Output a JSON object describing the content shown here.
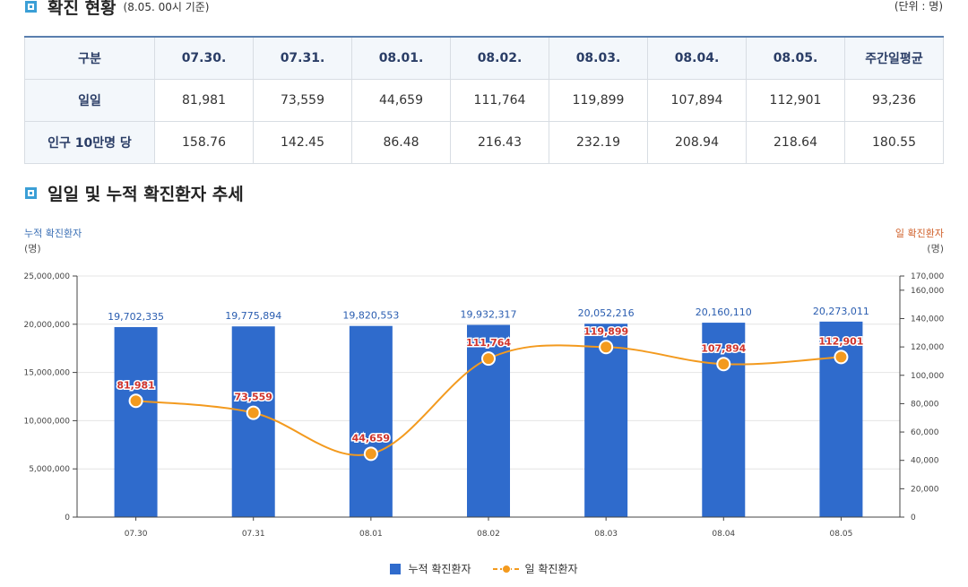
{
  "section1": {
    "title": "확진 현황",
    "subtitle": "(8.05. 00시 기준)",
    "unit": "(단위 : 명)"
  },
  "table": {
    "headers": [
      "구분",
      "07.30.",
      "07.31.",
      "08.01.",
      "08.02.",
      "08.03.",
      "08.04.",
      "08.05.",
      "주간일평균"
    ],
    "rows": [
      {
        "label": "일일",
        "cells": [
          "81,981",
          "73,559",
          "44,659",
          "111,764",
          "119,899",
          "107,894",
          "112,901",
          "93,236"
        ]
      },
      {
        "label": "인구 10만명 당",
        "cells": [
          "158.76",
          "142.45",
          "86.48",
          "216.43",
          "232.19",
          "208.94",
          "218.64",
          "180.55"
        ]
      }
    ]
  },
  "section2": {
    "title": "일일 및 누적 확진환자 추세"
  },
  "chart_data": {
    "type": "bar",
    "left_axis_label": "누적 확진환자",
    "left_axis_unit": "(명)",
    "right_axis_label": "일 확진환자",
    "right_axis_unit": "(명)",
    "categories": [
      "07.30",
      "07.31",
      "08.01",
      "08.02",
      "08.03",
      "08.04",
      "08.05"
    ],
    "left_ticks": [
      "0",
      "5,000,000",
      "10,000,000",
      "15,000,000",
      "20,000,000",
      "25,000,000"
    ],
    "left_tick_values": [
      0,
      5000000,
      10000000,
      15000000,
      20000000,
      25000000
    ],
    "left_ylim": [
      0,
      25000000
    ],
    "right_ticks": [
      "0",
      "20,000",
      "40,000",
      "60,000",
      "80,000",
      "100,000",
      "120,000",
      "140,000",
      "160,000",
      "170,000"
    ],
    "right_tick_values": [
      0,
      20000,
      40000,
      60000,
      80000,
      100000,
      120000,
      140000,
      160000,
      170000
    ],
    "right_ylim": [
      0,
      170000
    ],
    "series": [
      {
        "name": "누적 확진환자",
        "type": "bar",
        "axis": "left",
        "color": "#2f6bcc",
        "values": [
          19702335,
          19775894,
          19820553,
          19932317,
          20052216,
          20160110,
          20273011
        ],
        "labels": [
          "19,702,335",
          "19,775,894",
          "19,820,553",
          "19,932,317",
          "20,052,216",
          "20,160,110",
          "20,273,011"
        ]
      },
      {
        "name": "일 확진환자",
        "type": "line",
        "axis": "right",
        "color": "#f39a1e",
        "values": [
          81981,
          73559,
          44659,
          111764,
          119899,
          107894,
          112901
        ],
        "labels": [
          "81,981",
          "73,559",
          "44,659",
          "111,764",
          "119,899",
          "107,894",
          "112,901"
        ]
      }
    ],
    "grid": true,
    "legend_position": "bottom"
  }
}
